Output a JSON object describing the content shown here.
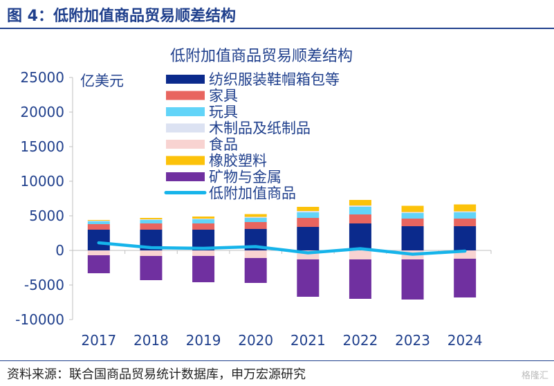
{
  "header": {
    "title": "图 4：低附加值商品贸易顺差结构"
  },
  "footer": {
    "source": "资料来源：联合国商品贸易统计数据库，申万宏源研究",
    "watermark": "格隆汇"
  },
  "chart_data": {
    "type": "bar",
    "stacked": true,
    "title": "低附加值商品贸易顺差结构",
    "ylabel": "亿美元",
    "xlabel": "",
    "ylim": [
      -10000,
      25000
    ],
    "yticks": [
      25000,
      20000,
      15000,
      10000,
      5000,
      0,
      -5000,
      -10000
    ],
    "categories": [
      "2017",
      "2018",
      "2019",
      "2020",
      "2021",
      "2022",
      "2023",
      "2024"
    ],
    "legend_position": "top-left",
    "grid": false,
    "series": [
      {
        "name": "纺织服装鞋帽箱包等",
        "kind": "bar",
        "color": "#0b2a8c",
        "values": [
          3000,
          3000,
          3000,
          3100,
          3400,
          3900,
          3500,
          3500
        ]
      },
      {
        "name": "家具",
        "kind": "bar",
        "color": "#e8655f",
        "values": [
          800,
          900,
          900,
          1000,
          1300,
          1300,
          1100,
          1100
        ]
      },
      {
        "name": "玩具",
        "kind": "bar",
        "color": "#62d4f8",
        "values": [
          400,
          500,
          600,
          600,
          800,
          1100,
          800,
          900
        ]
      },
      {
        "name": "木制品及纸制品",
        "kind": "bar",
        "color": "#dce2f2",
        "values": [
          100,
          100,
          100,
          150,
          200,
          200,
          150,
          150
        ]
      },
      {
        "name": "食品",
        "kind": "bar",
        "color": "#f8d3d1",
        "values": [
          -700,
          -800,
          -800,
          -1100,
          -1300,
          -1300,
          -1300,
          -1200
        ]
      },
      {
        "name": "橡胶塑料",
        "kind": "bar",
        "color": "#fcc20a",
        "values": [
          100,
          200,
          300,
          400,
          600,
          800,
          900,
          1000
        ]
      },
      {
        "name": "矿物与金属",
        "kind": "bar",
        "color": "#7030a0",
        "values": [
          -2600,
          -3500,
          -3800,
          -3600,
          -5400,
          -5700,
          -5800,
          -5600
        ]
      },
      {
        "name": "低附加值商品",
        "kind": "line",
        "color": "#16b4ea",
        "values": [
          1100,
          400,
          300,
          550,
          -350,
          250,
          -550,
          -100
        ]
      }
    ]
  }
}
